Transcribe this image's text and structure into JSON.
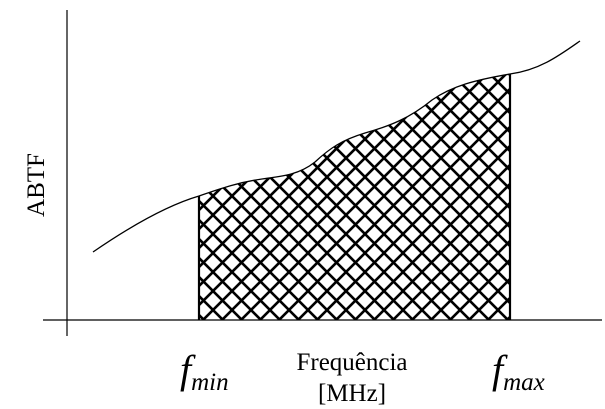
{
  "diagram": {
    "y_axis_label": "ABTF",
    "x_axis_label_line1": "Frequência",
    "x_axis_label_line2": "[MHz]",
    "f_min": {
      "symbol": "f",
      "subscript": "min"
    },
    "f_max": {
      "symbol": "f",
      "subscript": "max"
    },
    "fill_pattern": "crosshatch",
    "colors": {
      "line": "#000000",
      "background": "#ffffff"
    }
  }
}
